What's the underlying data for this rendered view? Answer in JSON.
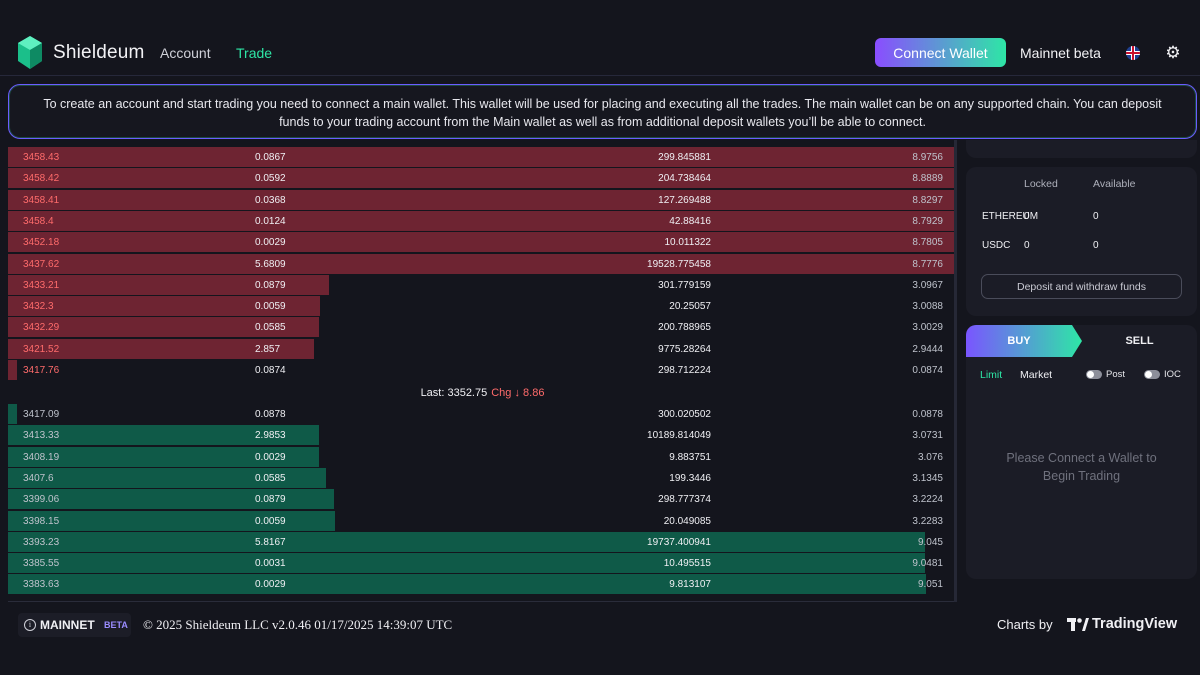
{
  "header": {
    "brand": "Shieldeum",
    "nav": [
      {
        "label": "Account",
        "active": false
      },
      {
        "label": "Trade",
        "active": true
      }
    ],
    "connect_wallet_label": "Connect Wallet",
    "network_label": "Mainnet beta",
    "icons": {
      "logo": "shield-cube-logo",
      "language": "uk-flag-icon",
      "settings": "gear-icon"
    },
    "accent_colors": {
      "primary": "#8a4dff",
      "secondary": "#2ee6a6"
    }
  },
  "notice": {
    "text": "To create an account and start trading you need to connect a main wallet. This wallet will be used for placing and executing all the trades. The main wallet can be on any supported chain. You can deposit funds to your trading account from the Main wallet as well as from additional deposit wallets you’ll be able to connect."
  },
  "orderbook": {
    "asks": [
      {
        "price": "3458.43",
        "size": "0.0867",
        "total": "299.845881",
        "sum": "8.9756",
        "depth": 1.0
      },
      {
        "price": "3458.42",
        "size": "0.0592",
        "total": "204.738464",
        "sum": "8.8889",
        "depth": 1.0
      },
      {
        "price": "3458.41",
        "size": "0.0368",
        "total": "127.269488",
        "sum": "8.8297",
        "depth": 1.0
      },
      {
        "price": "3458.4",
        "size": "0.0124",
        "total": "42.88416",
        "sum": "8.7929",
        "depth": 1.0
      },
      {
        "price": "3452.18",
        "size": "0.0029",
        "total": "10.011322",
        "sum": "8.7805",
        "depth": 1.0
      },
      {
        "price": "3437.62",
        "size": "5.6809",
        "total": "19528.775458",
        "sum": "8.7776",
        "depth": 1.0
      },
      {
        "price": "3433.21",
        "size": "0.0879",
        "total": "301.779159",
        "sum": "3.0967",
        "depth": 0.338
      },
      {
        "price": "3432.3",
        "size": "0.0059",
        "total": "20.25057",
        "sum": "3.0088",
        "depth": 0.329
      },
      {
        "price": "3432.29",
        "size": "0.0585",
        "total": "200.788965",
        "sum": "3.0029",
        "depth": 0.328
      },
      {
        "price": "3421.52",
        "size": "2.857",
        "total": "9775.28264",
        "sum": "2.9444",
        "depth": 0.322
      },
      {
        "price": "3417.76",
        "size": "0.0874",
        "total": "298.712224",
        "sum": "0.0874",
        "depth": 0.01
      }
    ],
    "last_label": "Last: 3352.75",
    "change_label": "Chg ↓ 8.86",
    "bids": [
      {
        "price": "3417.09",
        "size": "0.0878",
        "total": "300.020502",
        "sum": "0.0878",
        "depth": 0.01
      },
      {
        "price": "3413.33",
        "size": "2.9853",
        "total": "10189.814049",
        "sum": "3.0731",
        "depth": 0.328
      },
      {
        "price": "3408.19",
        "size": "0.0029",
        "total": "9.883751",
        "sum": "3.076",
        "depth": 0.328
      },
      {
        "price": "3407.6",
        "size": "0.0585",
        "total": "199.3446",
        "sum": "3.1345",
        "depth": 0.335
      },
      {
        "price": "3399.06",
        "size": "0.0879",
        "total": "298.777374",
        "sum": "3.2224",
        "depth": 0.344
      },
      {
        "price": "3398.15",
        "size": "0.0059",
        "total": "20.049085",
        "sum": "3.2283",
        "depth": 0.345
      },
      {
        "price": "3393.23",
        "size": "5.8167",
        "total": "19737.400941",
        "sum": "9.045",
        "depth": 0.966
      },
      {
        "price": "3385.55",
        "size": "0.0031",
        "total": "10.495515",
        "sum": "9.0481",
        "depth": 0.966
      },
      {
        "price": "3383.63",
        "size": "0.0029",
        "total": "9.813107",
        "sum": "9.051",
        "depth": 0.967
      }
    ]
  },
  "balances": {
    "headers": {
      "locked": "Locked",
      "available": "Available"
    },
    "rows": [
      {
        "asset": "ETHEREUM",
        "locked": "0",
        "available": "0"
      },
      {
        "asset": "USDC",
        "locked": "0",
        "available": "0"
      }
    ],
    "deposit_button": "Deposit and withdraw funds"
  },
  "trade_panel": {
    "buy_label": "BUY",
    "sell_label": "SELL",
    "order_types": {
      "limit": "Limit",
      "market": "Market"
    },
    "options": {
      "post": "Post",
      "ioc": "IOC"
    },
    "message": "Please Connect a Wallet to Begin Trading"
  },
  "footer": {
    "badge_main": "MAINNET",
    "badge_beta": "BETA",
    "copyright": "© 2025 Shieldeum LLC v2.0.46 01/17/2025 14:39:07 UTC",
    "charts_by": "Charts by",
    "tradingview": "TradingView"
  }
}
